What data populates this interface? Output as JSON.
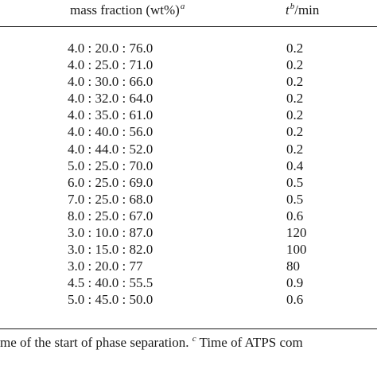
{
  "table": {
    "header": {
      "mass_fraction_label": "mass fraction (wt%)",
      "mass_fraction_sup": "a",
      "time_symbol": "t",
      "time_sup": "b",
      "time_unit": "/min"
    },
    "rows": [
      {
        "mass": "4.0 : 20.0 : 76.0",
        "time": "0.2"
      },
      {
        "mass": "4.0 : 25.0 : 71.0",
        "time": "0.2"
      },
      {
        "mass": "4.0 : 30.0 : 66.0",
        "time": "0.2"
      },
      {
        "mass": "4.0 : 32.0 : 64.0",
        "time": "0.2"
      },
      {
        "mass": "4.0 : 35.0 : 61.0",
        "time": "0.2"
      },
      {
        "mass": "4.0 : 40.0 : 56.0",
        "time": "0.2"
      },
      {
        "mass": "4.0 : 44.0 : 52.0",
        "time": "0.2"
      },
      {
        "mass": "5.0 : 25.0 : 70.0",
        "time": "0.4"
      },
      {
        "mass": "6.0 : 25.0 : 69.0",
        "time": "0.5"
      },
      {
        "mass": "7.0 : 25.0 : 68.0",
        "time": "0.5"
      },
      {
        "mass": "8.0 : 25.0 : 67.0",
        "time": "0.6"
      },
      {
        "mass": "3.0 : 10.0 : 87.0",
        "time": "120"
      },
      {
        "mass": "3.0 : 15.0 : 82.0",
        "time": "100"
      },
      {
        "mass": "3.0 : 20.0 : 77",
        "time": "80"
      },
      {
        "mass": "4.5 : 40.0 : 55.5",
        "time": "0.9"
      },
      {
        "mass": "5.0 : 45.0 : 50.0",
        "time": "0.6"
      }
    ]
  },
  "footnote": {
    "text_before": "me of the start of phase separation. ",
    "sup": "c",
    "text_after": " Time of ATPS com"
  }
}
